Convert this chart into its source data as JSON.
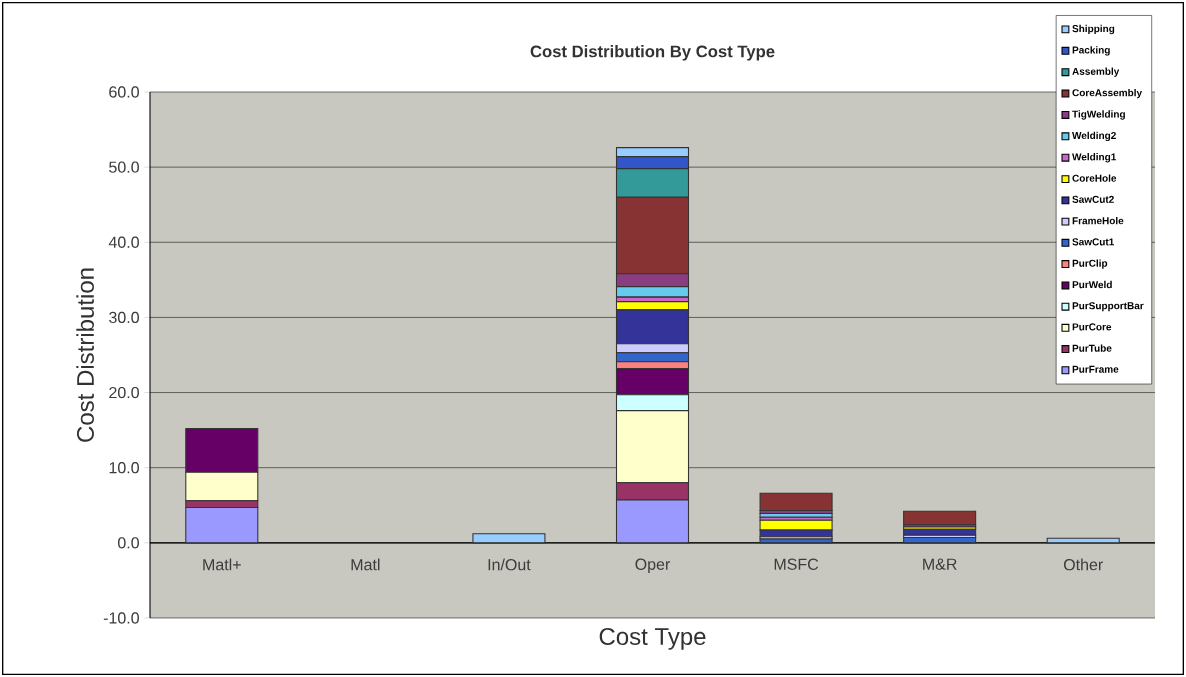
{
  "chart_data": {
    "type": "bar",
    "stacked": true,
    "title": "Cost Distribution By Cost Type",
    "xlabel": "Cost Type",
    "ylabel": "Cost Distribution",
    "categories": [
      "Matl+",
      "Matl",
      "In/Out",
      "Oper",
      "MSFC",
      "M&R",
      "Other"
    ],
    "ylim": [
      -10,
      60
    ],
    "yticks": [
      {
        "value": -10,
        "label": "-10.0"
      },
      {
        "value": 0,
        "label": "0.0"
      },
      {
        "value": 10,
        "label": "10.0"
      },
      {
        "value": 20,
        "label": "20.0"
      },
      {
        "value": 30,
        "label": "30.0"
      },
      {
        "value": 40,
        "label": "40.0"
      },
      {
        "value": 50,
        "label": "50.0"
      },
      {
        "value": 60,
        "label": "60.0"
      }
    ],
    "grid": "y",
    "legend": "top right",
    "series": [
      {
        "name": "PurFrame",
        "color": "#9999ff",
        "values": [
          4.7,
          0,
          0,
          5.7,
          0,
          0,
          0
        ]
      },
      {
        "name": "PurTube",
        "color": "#993366",
        "values": [
          0.9,
          0,
          0,
          2.3,
          0,
          0,
          0
        ]
      },
      {
        "name": "PurCore",
        "color": "#ffffcc",
        "values": [
          3.8,
          0,
          0,
          9.6,
          0,
          0,
          0
        ]
      },
      {
        "name": "PurSupportBar",
        "color": "#ccffff",
        "values": [
          0,
          0,
          0,
          2.1,
          0,
          0,
          0
        ]
      },
      {
        "name": "PurWeld",
        "color": "#660066",
        "values": [
          5.8,
          0,
          0,
          3.5,
          0,
          0,
          0
        ]
      },
      {
        "name": "PurClip",
        "color": "#ff8080",
        "values": [
          0,
          0,
          0,
          0.9,
          0,
          0,
          0
        ]
      },
      {
        "name": "SawCut1",
        "color": "#3366cc",
        "values": [
          0,
          0,
          0,
          1.2,
          0.5,
          0.7,
          0
        ]
      },
      {
        "name": "FrameHole",
        "color": "#ccccff",
        "values": [
          0,
          0,
          0,
          1.2,
          0.3,
          0.3,
          0
        ]
      },
      {
        "name": "SawCut2",
        "color": "#333399",
        "values": [
          0,
          0,
          0,
          4.5,
          0.9,
          0.8,
          0
        ]
      },
      {
        "name": "CoreHole",
        "color": "#ffff00",
        "values": [
          0,
          0,
          0,
          1.1,
          1.3,
          0.3,
          0
        ]
      },
      {
        "name": "Welding1",
        "color": "#cc66cc",
        "values": [
          0,
          0,
          0,
          0.6,
          0.4,
          0,
          0
        ]
      },
      {
        "name": "Welding2",
        "color": "#66ccee",
        "values": [
          0,
          0,
          0,
          1.4,
          0.5,
          0,
          0
        ]
      },
      {
        "name": "TigWelding",
        "color": "#8a3d80",
        "values": [
          0,
          0,
          0,
          1.7,
          0.4,
          0.3,
          0
        ]
      },
      {
        "name": "CoreAssembly",
        "color": "#883333",
        "values": [
          0,
          0,
          0,
          10.2,
          2.3,
          1.8,
          0
        ]
      },
      {
        "name": "Assembly",
        "color": "#339999",
        "values": [
          0,
          0,
          0,
          3.8,
          0,
          0,
          0
        ]
      },
      {
        "name": "Packing",
        "color": "#3355cc",
        "values": [
          0,
          0,
          0,
          1.6,
          0,
          0,
          0
        ]
      },
      {
        "name": "Shipping",
        "color": "#99ccff",
        "values": [
          0,
          0,
          1.2,
          1.2,
          0,
          0,
          0.6
        ]
      }
    ]
  }
}
